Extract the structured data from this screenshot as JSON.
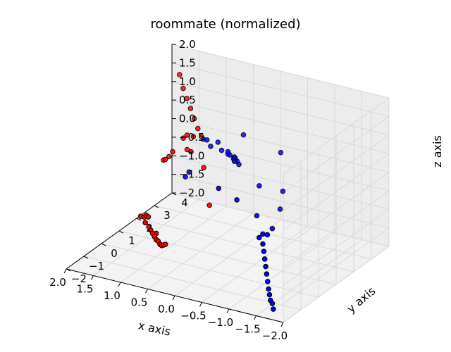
{
  "chart_data": {
    "type": "scatter",
    "projection": "3d",
    "title": "roommate (normalized)",
    "xlabel": "x axis",
    "ylabel": "y axis",
    "zlabel": "z axis",
    "xlim": [
      -2.0,
      2.0
    ],
    "ylim": [
      -2,
      4
    ],
    "zlim": [
      -2.0,
      2.0
    ],
    "x_ticks": [
      "−2.0",
      "−1.5",
      "−1.0",
      "−0.5",
      "0.0",
      "0.5",
      "1.0",
      "1.5",
      "2.0"
    ],
    "y_ticks": [
      "−2",
      "−1",
      "0",
      "1",
      "2",
      "3",
      "4"
    ],
    "z_ticks": [
      "−2.0",
      "−1.5",
      "−1.0",
      "−0.5",
      "0.0",
      "0.5",
      "1.0",
      "1.5",
      "2.0"
    ],
    "grid": true,
    "series": [
      {
        "color": "#0000ff",
        "points": [
          [
            -0.85,
            1.4,
            1.0
          ],
          [
            0.0,
            1.9,
            1.0
          ],
          [
            -1.05,
            0.9,
            0.2
          ],
          [
            -0.55,
            1.1,
            0.1
          ],
          [
            -1.0,
            0.9,
            -0.3
          ],
          [
            -1.05,
            0.3,
            -0.6
          ],
          [
            -1.35,
            -0.9,
            -0.25
          ],
          [
            -1.2,
            -0.7,
            -0.35
          ],
          [
            -1.15,
            -0.75,
            -0.45
          ],
          [
            -1.25,
            -0.85,
            -0.55
          ],
          [
            -1.3,
            -0.95,
            -0.7
          ],
          [
            -1.35,
            -1.05,
            -0.85
          ],
          [
            -1.4,
            -1.15,
            -1.0
          ],
          [
            -1.45,
            -1.25,
            -1.15
          ],
          [
            -1.5,
            -1.35,
            -1.3
          ],
          [
            -1.55,
            -1.45,
            -1.45
          ],
          [
            -1.6,
            -1.55,
            -1.55
          ],
          [
            -1.65,
            -1.65,
            -1.65
          ],
          [
            -1.7,
            -1.7,
            -1.7
          ],
          [
            -1.75,
            -1.8,
            -1.8
          ],
          [
            -0.3,
            0.6,
            -0.2
          ],
          [
            0.1,
            0.8,
            -0.1
          ],
          [
            -0.7,
            0.5,
            -0.45
          ],
          [
            0.2,
            2.0,
            0.3
          ],
          [
            0.35,
            2.1,
            0.35
          ],
          [
            0.1,
            1.95,
            0.15
          ],
          [
            0.15,
            2.0,
            0.2
          ],
          [
            0.2,
            2.05,
            0.25
          ],
          [
            0.25,
            2.1,
            0.2
          ],
          [
            0.3,
            2.05,
            0.3
          ],
          [
            0.2,
            2.0,
            0.18
          ],
          [
            0.5,
            2.2,
            0.3
          ],
          [
            0.6,
            2.3,
            0.45
          ],
          [
            0.9,
            2.6,
            0.3
          ],
          [
            1.0,
            2.7,
            0.25
          ],
          [
            0.8,
            2.5,
            0.2
          ],
          [
            1.1,
            2.2,
            -0.5
          ],
          [
            1.2,
            2.3,
            -0.7
          ],
          [
            0.45,
            2.4,
            0.15
          ]
        ]
      },
      {
        "color": "#ff0000",
        "points": [
          [
            1.6,
            3.2,
            1.6
          ],
          [
            1.5,
            3.1,
            1.3
          ],
          [
            1.4,
            3.0,
            1.1
          ],
          [
            1.3,
            2.9,
            0.9
          ],
          [
            1.2,
            2.8,
            0.7
          ],
          [
            1.1,
            2.7,
            0.5
          ],
          [
            1.0,
            2.6,
            0.35
          ],
          [
            1.15,
            2.6,
            0.3
          ],
          [
            1.3,
            2.7,
            0.25
          ],
          [
            1.4,
            2.8,
            0.1
          ],
          [
            1.2,
            2.4,
            0.0
          ],
          [
            1.5,
            2.5,
            -0.2
          ],
          [
            1.6,
            2.6,
            -0.4
          ],
          [
            1.7,
            2.7,
            -0.55
          ],
          [
            1.75,
            2.75,
            -0.6
          ],
          [
            1.0,
            2.0,
            0.15
          ],
          [
            0.7,
            1.8,
            -0.1
          ],
          [
            0.4,
            1.2,
            -0.8
          ],
          [
            1.3,
            0.5,
            -1.2
          ],
          [
            1.5,
            1.0,
            -1.4
          ],
          [
            1.6,
            1.2,
            -1.55
          ],
          [
            1.7,
            1.3,
            -1.6
          ],
          [
            1.55,
            1.1,
            -1.65
          ],
          [
            1.45,
            1.0,
            -1.7
          ],
          [
            1.4,
            0.95,
            -1.75
          ],
          [
            1.35,
            0.9,
            -1.8
          ],
          [
            1.3,
            0.85,
            -1.85
          ],
          [
            1.25,
            0.8,
            -1.9
          ],
          [
            1.2,
            0.75,
            -1.9
          ],
          [
            1.15,
            0.7,
            -1.95
          ],
          [
            1.1,
            0.65,
            -1.95
          ],
          [
            1.05,
            0.6,
            -1.9
          ],
          [
            1.0,
            0.55,
            -1.85
          ],
          [
            1.3,
            0.95,
            -1.8
          ]
        ]
      }
    ]
  }
}
